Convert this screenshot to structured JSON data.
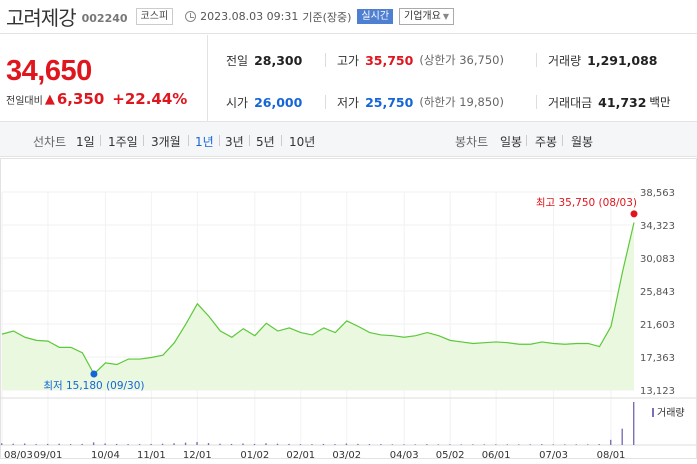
{
  "header": {
    "stock_name": "고려제강",
    "stock_code": "002240",
    "market": "코스피",
    "timestamp": "2023.08.03 09:31",
    "basis": "기준(장중)",
    "realtime": "실시간",
    "company_info": "기업개요"
  },
  "price": {
    "current": "34,650",
    "change_label": "전일대비",
    "change": "6,350",
    "change_pct": "+22.44%"
  },
  "stats": {
    "prev_close": {
      "label": "전일",
      "value": "28,300"
    },
    "high": {
      "label": "고가",
      "value": "35,750",
      "sub": "(상한가 36,750)"
    },
    "volume": {
      "label": "거래량",
      "value": "1,291,088"
    },
    "open": {
      "label": "시가",
      "value": "26,000"
    },
    "low": {
      "label": "저가",
      "value": "25,750",
      "sub": "(하한가 19,850)"
    },
    "trade_value": {
      "label": "거래대금",
      "value": "41,732",
      "unit": "백만"
    }
  },
  "toolbar": {
    "line_chart_label": "선차트",
    "periods": [
      "1일",
      "1주일",
      "3개월",
      "1년",
      "3년",
      "5년",
      "10년"
    ],
    "active_period": "1년",
    "candle_chart_label": "봉차트",
    "candle_periods": [
      "일봉",
      "주봉",
      "월봉"
    ]
  },
  "colors": {
    "up": "#e0161e",
    "down": "#1565d8",
    "line": "#5cc93a",
    "area": "#e9f8df"
  },
  "chart_data": {
    "type": "area",
    "x": [
      "08/03",
      "08/10",
      "08/17",
      "08/24",
      "08/31",
      "09/07",
      "09/14",
      "09/21",
      "09/30",
      "10/06",
      "10/13",
      "10/20",
      "10/27",
      "11/03",
      "11/10",
      "11/17",
      "11/24",
      "12/01",
      "12/08",
      "12/15",
      "12/22",
      "12/29",
      "01/05",
      "01/12",
      "01/19",
      "01/26",
      "02/02",
      "02/09",
      "02/16",
      "02/23",
      "03/02",
      "03/09",
      "03/16",
      "03/23",
      "03/30",
      "04/06",
      "04/13",
      "04/20",
      "04/27",
      "05/04",
      "05/11",
      "05/18",
      "05/25",
      "06/01",
      "06/08",
      "06/15",
      "06/22",
      "06/29",
      "07/06",
      "07/13",
      "07/20",
      "07/27",
      "07/31",
      "08/01",
      "08/02",
      "08/03"
    ],
    "y": [
      20300,
      20700,
      19900,
      19500,
      19400,
      18600,
      18600,
      17900,
      15180,
      16600,
      16400,
      17100,
      17100,
      17300,
      17600,
      19200,
      21600,
      24200,
      22600,
      20700,
      19900,
      21000,
      20100,
      21700,
      20700,
      21100,
      20500,
      20200,
      21100,
      20500,
      22000,
      21300,
      20500,
      20200,
      20100,
      19900,
      20100,
      20500,
      20100,
      19500,
      19300,
      19100,
      19200,
      19300,
      19200,
      19000,
      19000,
      19300,
      19100,
      19000,
      19100,
      19100,
      18700,
      21300,
      28300,
      34650
    ],
    "y_ticks": [
      "38,563",
      "34,323",
      "30,083",
      "25,843",
      "21,603",
      "17,363",
      "13,123"
    ],
    "ylim": [
      13123,
      38563
    ],
    "x_ticks": [
      "08/03",
      "09/01",
      "10/04",
      "11/01",
      "12/01",
      "01/02",
      "02/01",
      "03/02",
      "04/03",
      "05/02",
      "06/01",
      "07/03",
      "08/01"
    ],
    "max_label": "최고 35,750 (08/03)",
    "max_value": 35750,
    "min_label": "최저 15,180 (09/30)",
    "min_value": 15180,
    "volume_legend": "거래량",
    "volume": [
      40,
      30,
      35,
      20,
      25,
      30,
      20,
      25,
      60,
      35,
      25,
      20,
      20,
      25,
      30,
      40,
      55,
      70,
      45,
      30,
      25,
      35,
      25,
      40,
      30,
      25,
      20,
      20,
      25,
      20,
      35,
      25,
      20,
      20,
      15,
      15,
      15,
      20,
      15,
      15,
      15,
      15,
      15,
      15,
      15,
      15,
      15,
      20,
      15,
      15,
      15,
      15,
      20,
      120,
      380,
      1000
    ]
  }
}
